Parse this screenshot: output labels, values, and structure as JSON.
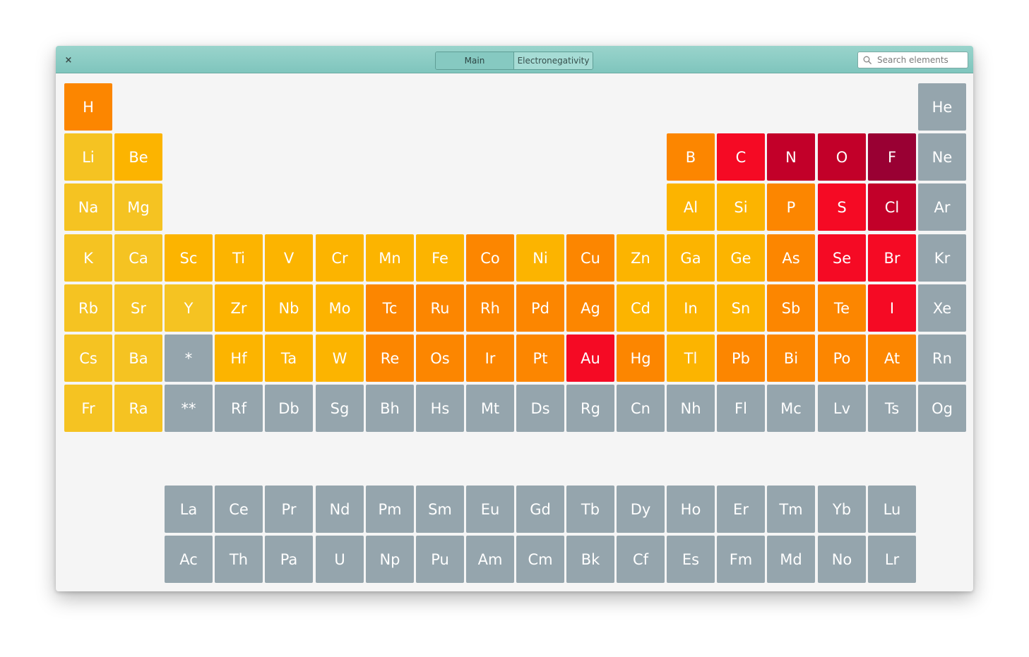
{
  "window": {
    "close_label": "×",
    "tabs": [
      {
        "label": "Main"
      },
      {
        "label": "Electronegativity"
      }
    ],
    "search": {
      "placeholder": "Search elements",
      "value": ""
    }
  },
  "colors": {
    "c1": "#f5c322",
    "c2": "#fcb400",
    "c3": "#fc8600",
    "c4": "#f50a24",
    "c5": "#c20029",
    "c6": "#990033",
    "na": "#95a5ad"
  },
  "elements": [
    {
      "symbol": "H",
      "row": 1,
      "col": 1,
      "color": "c3"
    },
    {
      "symbol": "He",
      "row": 1,
      "col": 18,
      "color": "na"
    },
    {
      "symbol": "Li",
      "row": 2,
      "col": 1,
      "color": "c1"
    },
    {
      "symbol": "Be",
      "row": 2,
      "col": 2,
      "color": "c2"
    },
    {
      "symbol": "B",
      "row": 2,
      "col": 13,
      "color": "c3"
    },
    {
      "symbol": "C",
      "row": 2,
      "col": 14,
      "color": "c4"
    },
    {
      "symbol": "N",
      "row": 2,
      "col": 15,
      "color": "c5"
    },
    {
      "symbol": "O",
      "row": 2,
      "col": 16,
      "color": "c5"
    },
    {
      "symbol": "F",
      "row": 2,
      "col": 17,
      "color": "c6"
    },
    {
      "symbol": "Ne",
      "row": 2,
      "col": 18,
      "color": "na"
    },
    {
      "symbol": "Na",
      "row": 3,
      "col": 1,
      "color": "c1"
    },
    {
      "symbol": "Mg",
      "row": 3,
      "col": 2,
      "color": "c1"
    },
    {
      "symbol": "Al",
      "row": 3,
      "col": 13,
      "color": "c2"
    },
    {
      "symbol": "Si",
      "row": 3,
      "col": 14,
      "color": "c2"
    },
    {
      "symbol": "P",
      "row": 3,
      "col": 15,
      "color": "c3"
    },
    {
      "symbol": "S",
      "row": 3,
      "col": 16,
      "color": "c4"
    },
    {
      "symbol": "Cl",
      "row": 3,
      "col": 17,
      "color": "c5"
    },
    {
      "symbol": "Ar",
      "row": 3,
      "col": 18,
      "color": "na"
    },
    {
      "symbol": "K",
      "row": 4,
      "col": 1,
      "color": "c1"
    },
    {
      "symbol": "Ca",
      "row": 4,
      "col": 2,
      "color": "c1"
    },
    {
      "symbol": "Sc",
      "row": 4,
      "col": 3,
      "color": "c2"
    },
    {
      "symbol": "Ti",
      "row": 4,
      "col": 4,
      "color": "c2"
    },
    {
      "symbol": "V",
      "row": 4,
      "col": 5,
      "color": "c2"
    },
    {
      "symbol": "Cr",
      "row": 4,
      "col": 6,
      "color": "c2"
    },
    {
      "symbol": "Mn",
      "row": 4,
      "col": 7,
      "color": "c2"
    },
    {
      "symbol": "Fe",
      "row": 4,
      "col": 8,
      "color": "c2"
    },
    {
      "symbol": "Co",
      "row": 4,
      "col": 9,
      "color": "c3"
    },
    {
      "symbol": "Ni",
      "row": 4,
      "col": 10,
      "color": "c2"
    },
    {
      "symbol": "Cu",
      "row": 4,
      "col": 11,
      "color": "c3"
    },
    {
      "symbol": "Zn",
      "row": 4,
      "col": 12,
      "color": "c2"
    },
    {
      "symbol": "Ga",
      "row": 4,
      "col": 13,
      "color": "c2"
    },
    {
      "symbol": "Ge",
      "row": 4,
      "col": 14,
      "color": "c2"
    },
    {
      "symbol": "As",
      "row": 4,
      "col": 15,
      "color": "c3"
    },
    {
      "symbol": "Se",
      "row": 4,
      "col": 16,
      "color": "c4"
    },
    {
      "symbol": "Br",
      "row": 4,
      "col": 17,
      "color": "c4"
    },
    {
      "symbol": "Kr",
      "row": 4,
      "col": 18,
      "color": "na"
    },
    {
      "symbol": "Rb",
      "row": 5,
      "col": 1,
      "color": "c1"
    },
    {
      "symbol": "Sr",
      "row": 5,
      "col": 2,
      "color": "c1"
    },
    {
      "symbol": "Y",
      "row": 5,
      "col": 3,
      "color": "c1"
    },
    {
      "symbol": "Zr",
      "row": 5,
      "col": 4,
      "color": "c2"
    },
    {
      "symbol": "Nb",
      "row": 5,
      "col": 5,
      "color": "c2"
    },
    {
      "symbol": "Mo",
      "row": 5,
      "col": 6,
      "color": "c2"
    },
    {
      "symbol": "Tc",
      "row": 5,
      "col": 7,
      "color": "c3"
    },
    {
      "symbol": "Ru",
      "row": 5,
      "col": 8,
      "color": "c3"
    },
    {
      "symbol": "Rh",
      "row": 5,
      "col": 9,
      "color": "c3"
    },
    {
      "symbol": "Pd",
      "row": 5,
      "col": 10,
      "color": "c3"
    },
    {
      "symbol": "Ag",
      "row": 5,
      "col": 11,
      "color": "c3"
    },
    {
      "symbol": "Cd",
      "row": 5,
      "col": 12,
      "color": "c2"
    },
    {
      "symbol": "In",
      "row": 5,
      "col": 13,
      "color": "c2"
    },
    {
      "symbol": "Sn",
      "row": 5,
      "col": 14,
      "color": "c2"
    },
    {
      "symbol": "Sb",
      "row": 5,
      "col": 15,
      "color": "c3"
    },
    {
      "symbol": "Te",
      "row": 5,
      "col": 16,
      "color": "c3"
    },
    {
      "symbol": "I",
      "row": 5,
      "col": 17,
      "color": "c4"
    },
    {
      "symbol": "Xe",
      "row": 5,
      "col": 18,
      "color": "na"
    },
    {
      "symbol": "Cs",
      "row": 6,
      "col": 1,
      "color": "c1"
    },
    {
      "symbol": "Ba",
      "row": 6,
      "col": 2,
      "color": "c1"
    },
    {
      "symbol": "*",
      "row": 6,
      "col": 3,
      "color": "na"
    },
    {
      "symbol": "Hf",
      "row": 6,
      "col": 4,
      "color": "c2"
    },
    {
      "symbol": "Ta",
      "row": 6,
      "col": 5,
      "color": "c2"
    },
    {
      "symbol": "W",
      "row": 6,
      "col": 6,
      "color": "c2"
    },
    {
      "symbol": "Re",
      "row": 6,
      "col": 7,
      "color": "c3"
    },
    {
      "symbol": "Os",
      "row": 6,
      "col": 8,
      "color": "c3"
    },
    {
      "symbol": "Ir",
      "row": 6,
      "col": 9,
      "color": "c3"
    },
    {
      "symbol": "Pt",
      "row": 6,
      "col": 10,
      "color": "c3"
    },
    {
      "symbol": "Au",
      "row": 6,
      "col": 11,
      "color": "c4"
    },
    {
      "symbol": "Hg",
      "row": 6,
      "col": 12,
      "color": "c3"
    },
    {
      "symbol": "Tl",
      "row": 6,
      "col": 13,
      "color": "c2"
    },
    {
      "symbol": "Pb",
      "row": 6,
      "col": 14,
      "color": "c3"
    },
    {
      "symbol": "Bi",
      "row": 6,
      "col": 15,
      "color": "c3"
    },
    {
      "symbol": "Po",
      "row": 6,
      "col": 16,
      "color": "c3"
    },
    {
      "symbol": "At",
      "row": 6,
      "col": 17,
      "color": "c3"
    },
    {
      "symbol": "Rn",
      "row": 6,
      "col": 18,
      "color": "na"
    },
    {
      "symbol": "Fr",
      "row": 7,
      "col": 1,
      "color": "c1"
    },
    {
      "symbol": "Ra",
      "row": 7,
      "col": 2,
      "color": "c1"
    },
    {
      "symbol": "**",
      "row": 7,
      "col": 3,
      "color": "na"
    },
    {
      "symbol": "Rf",
      "row": 7,
      "col": 4,
      "color": "na"
    },
    {
      "symbol": "Db",
      "row": 7,
      "col": 5,
      "color": "na"
    },
    {
      "symbol": "Sg",
      "row": 7,
      "col": 6,
      "color": "na"
    },
    {
      "symbol": "Bh",
      "row": 7,
      "col": 7,
      "color": "na"
    },
    {
      "symbol": "Hs",
      "row": 7,
      "col": 8,
      "color": "na"
    },
    {
      "symbol": "Mt",
      "row": 7,
      "col": 9,
      "color": "na"
    },
    {
      "symbol": "Ds",
      "row": 7,
      "col": 10,
      "color": "na"
    },
    {
      "symbol": "Rg",
      "row": 7,
      "col": 11,
      "color": "na"
    },
    {
      "symbol": "Cn",
      "row": 7,
      "col": 12,
      "color": "na"
    },
    {
      "symbol": "Nh",
      "row": 7,
      "col": 13,
      "color": "na"
    },
    {
      "symbol": "Fl",
      "row": 7,
      "col": 14,
      "color": "na"
    },
    {
      "symbol": "Mc",
      "row": 7,
      "col": 15,
      "color": "na"
    },
    {
      "symbol": "Lv",
      "row": 7,
      "col": 16,
      "color": "na"
    },
    {
      "symbol": "Ts",
      "row": 7,
      "col": 17,
      "color": "na"
    },
    {
      "symbol": "Og",
      "row": 7,
      "col": 18,
      "color": "na"
    },
    {
      "symbol": "La",
      "row": 9,
      "col": 3,
      "color": "na"
    },
    {
      "symbol": "Ce",
      "row": 9,
      "col": 4,
      "color": "na"
    },
    {
      "symbol": "Pr",
      "row": 9,
      "col": 5,
      "color": "na"
    },
    {
      "symbol": "Nd",
      "row": 9,
      "col": 6,
      "color": "na"
    },
    {
      "symbol": "Pm",
      "row": 9,
      "col": 7,
      "color": "na"
    },
    {
      "symbol": "Sm",
      "row": 9,
      "col": 8,
      "color": "na"
    },
    {
      "symbol": "Eu",
      "row": 9,
      "col": 9,
      "color": "na"
    },
    {
      "symbol": "Gd",
      "row": 9,
      "col": 10,
      "color": "na"
    },
    {
      "symbol": "Tb",
      "row": 9,
      "col": 11,
      "color": "na"
    },
    {
      "symbol": "Dy",
      "row": 9,
      "col": 12,
      "color": "na"
    },
    {
      "symbol": "Ho",
      "row": 9,
      "col": 13,
      "color": "na"
    },
    {
      "symbol": "Er",
      "row": 9,
      "col": 14,
      "color": "na"
    },
    {
      "symbol": "Tm",
      "row": 9,
      "col": 15,
      "color": "na"
    },
    {
      "symbol": "Yb",
      "row": 9,
      "col": 16,
      "color": "na"
    },
    {
      "symbol": "Lu",
      "row": 9,
      "col": 17,
      "color": "na"
    },
    {
      "symbol": "Ac",
      "row": 10,
      "col": 3,
      "color": "na"
    },
    {
      "symbol": "Th",
      "row": 10,
      "col": 4,
      "color": "na"
    },
    {
      "symbol": "Pa",
      "row": 10,
      "col": 5,
      "color": "na"
    },
    {
      "symbol": "U",
      "row": 10,
      "col": 6,
      "color": "na"
    },
    {
      "symbol": "Np",
      "row": 10,
      "col": 7,
      "color": "na"
    },
    {
      "symbol": "Pu",
      "row": 10,
      "col": 8,
      "color": "na"
    },
    {
      "symbol": "Am",
      "row": 10,
      "col": 9,
      "color": "na"
    },
    {
      "symbol": "Cm",
      "row": 10,
      "col": 10,
      "color": "na"
    },
    {
      "symbol": "Bk",
      "row": 10,
      "col": 11,
      "color": "na"
    },
    {
      "symbol": "Cf",
      "row": 10,
      "col": 12,
      "color": "na"
    },
    {
      "symbol": "Es",
      "row": 10,
      "col": 13,
      "color": "na"
    },
    {
      "symbol": "Fm",
      "row": 10,
      "col": 14,
      "color": "na"
    },
    {
      "symbol": "Md",
      "row": 10,
      "col": 15,
      "color": "na"
    },
    {
      "symbol": "No",
      "row": 10,
      "col": 16,
      "color": "na"
    },
    {
      "symbol": "Lr",
      "row": 10,
      "col": 17,
      "color": "na"
    }
  ]
}
